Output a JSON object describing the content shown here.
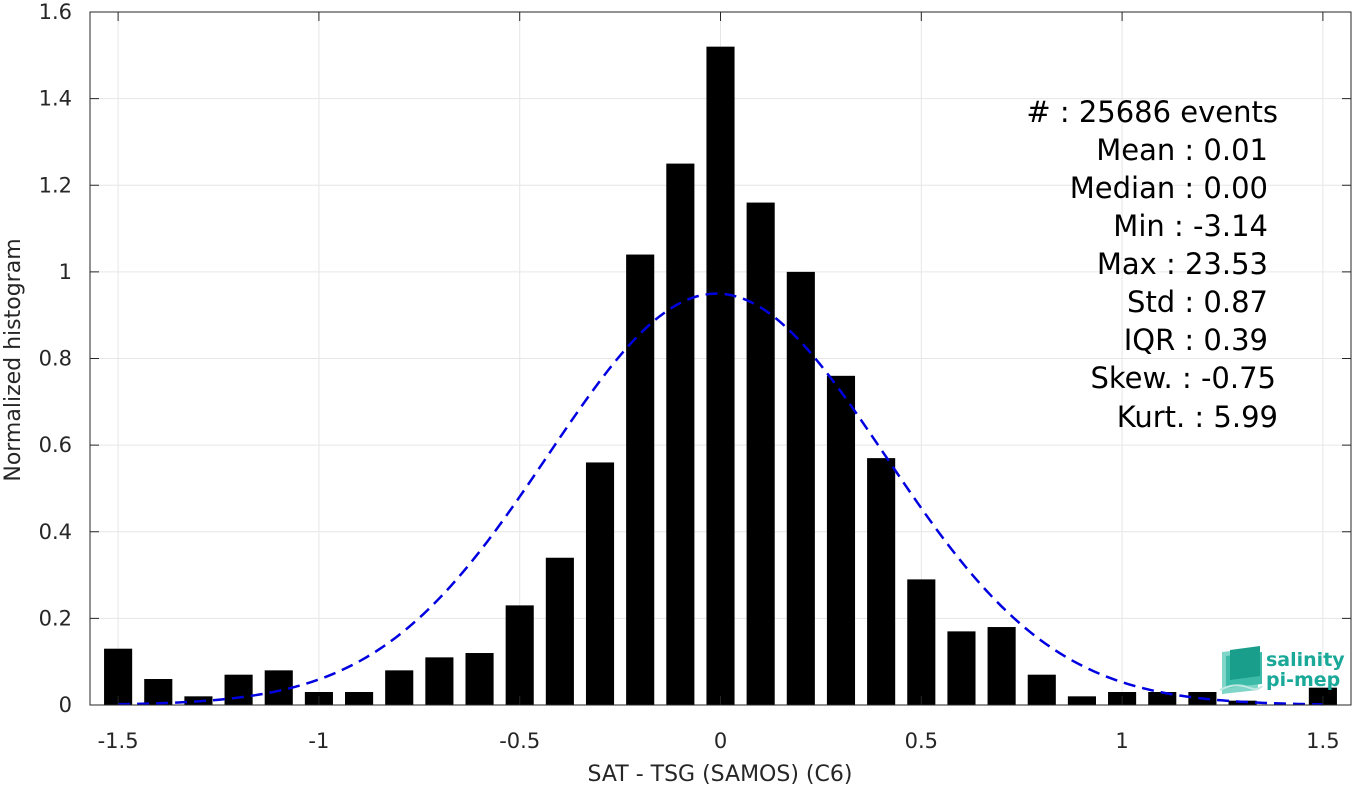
{
  "chart_data": {
    "type": "bar",
    "xlabel": "SAT - TSG (SAMOS) (C6)",
    "ylabel": "Normalized histogram",
    "xlim": [
      -1.57,
      1.57
    ],
    "ylim": [
      0,
      1.6
    ],
    "xticks": [
      -1.5,
      -1,
      -0.5,
      0,
      0.5,
      1,
      1.5
    ],
    "xtick_labels": [
      "-1.5",
      "-1",
      "-0.5",
      "0",
      "0.5",
      "1",
      "1.5"
    ],
    "yticks": [
      0,
      0.2,
      0.4,
      0.6,
      0.8,
      1,
      1.2,
      1.4,
      1.6
    ],
    "ytick_labels": [
      "0",
      "0.2",
      "0.4",
      "0.6",
      "0.8",
      "1",
      "1.2",
      "1.4",
      "1.6"
    ],
    "grid": true,
    "bar_width": 0.07,
    "x": [
      -1.5,
      -1.4,
      -1.3,
      -1.2,
      -1.1,
      -1.0,
      -0.9,
      -0.8,
      -0.7,
      -0.6,
      -0.5,
      -0.4,
      -0.3,
      -0.2,
      -0.1,
      0.0,
      0.1,
      0.2,
      0.3,
      0.4,
      0.5,
      0.6,
      0.7,
      0.8,
      0.9,
      1.0,
      1.1,
      1.2,
      1.3,
      1.4,
      1.5
    ],
    "values": [
      0.13,
      0.06,
      0.02,
      0.07,
      0.08,
      0.03,
      0.03,
      0.08,
      0.11,
      0.12,
      0.23,
      0.34,
      0.56,
      1.04,
      1.25,
      1.52,
      1.16,
      1.0,
      0.76,
      0.57,
      0.29,
      0.17,
      0.18,
      0.07,
      0.02,
      0.03,
      0.03,
      0.03,
      0.01,
      0.0,
      0.04
    ],
    "bar_color": "#000000",
    "fit": {
      "type": "normal",
      "style": "dashed",
      "color": "#0000e0",
      "x_range": [
        -1.5,
        1.5
      ],
      "mean": -0.01,
      "std": 0.42
    },
    "stats": [
      {
        "label": "#  ",
        "value": ": 25686 events"
      },
      {
        "label": "Mean",
        "value": ": 0.01"
      },
      {
        "label": "Median",
        "value": ": 0.00"
      },
      {
        "label": "Min",
        "value": ": -3.14"
      },
      {
        "label": "Max",
        "value": ": 23.53"
      },
      {
        "label": "Std",
        "value": ": 0.87"
      },
      {
        "label": "IQR",
        "value": ": 0.39"
      },
      {
        "label": "Skew.",
        "value": ": -0.75"
      },
      {
        "label": "Kurt.",
        "value": ": 5.99"
      }
    ]
  },
  "logo": {
    "line1": "salinity",
    "line2": "pi-mep",
    "color": "#1aa898"
  }
}
